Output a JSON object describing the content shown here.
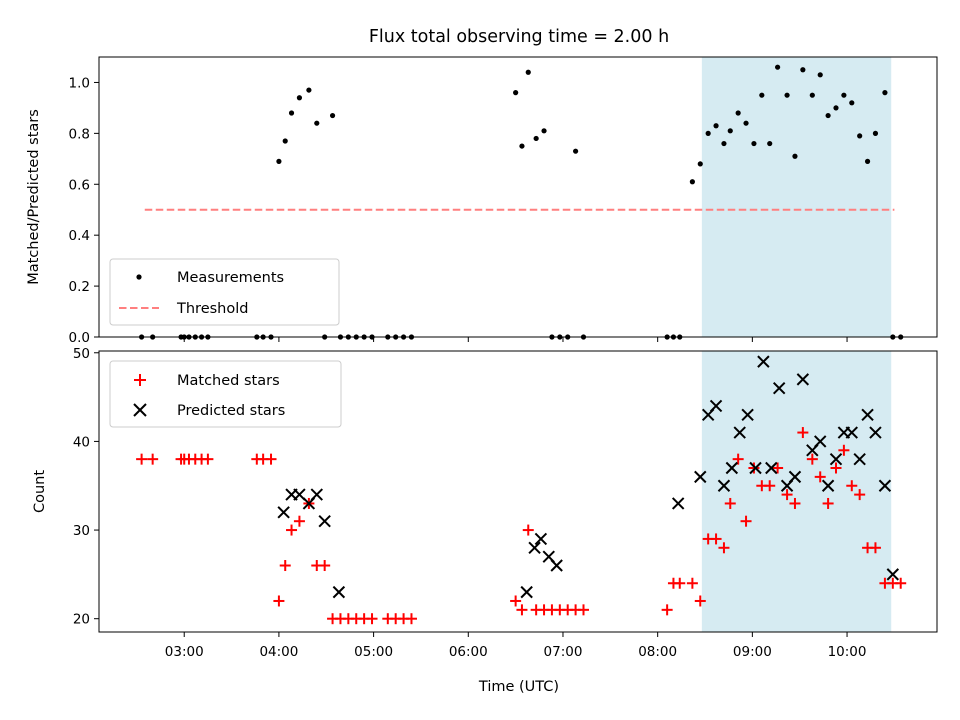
{
  "chart_data": [
    {
      "type": "scatter",
      "title": "Flux total observing time = 2.00 h",
      "xlabel": "",
      "ylabel": "Matched/Predicted stars",
      "ylim": [
        0,
        1.1
      ],
      "yticks": [
        0.0,
        0.2,
        0.4,
        0.6,
        0.8,
        1.0
      ],
      "ytick_labels": [
        "0.0",
        "0.2",
        "0.4",
        "0.6",
        "0.8",
        "1.0"
      ],
      "x_unit": "hours (UTC)",
      "xlim": [
        2.1,
        10.95
      ],
      "shaded_interval": {
        "start": "08:28",
        "end": "10:28",
        "color": "#add8e6"
      },
      "threshold": {
        "value": 0.5,
        "x_start": "02:35",
        "x_end": "10:30",
        "color": "#ff7f7f",
        "style": "dashed"
      },
      "legend": {
        "position": "lower-left",
        "entries": [
          "Measurements",
          "Threshold"
        ]
      },
      "series": [
        {
          "name": "Measurements",
          "color": "#000000",
          "x": [
            "02:33",
            "02:40",
            "02:58",
            "03:00",
            "03:03",
            "03:07",
            "03:11",
            "03:15",
            "03:46",
            "03:50",
            "03:55",
            "04:00",
            "04:04",
            "04:08",
            "04:13",
            "04:19",
            "04:24",
            "04:29",
            "04:34",
            "04:39",
            "04:44",
            "04:49",
            "04:54",
            "04:59",
            "05:09",
            "05:14",
            "05:19",
            "05:24",
            "06:30",
            "06:34",
            "06:38",
            "06:43",
            "06:48",
            "06:53",
            "06:58",
            "07:03",
            "07:08",
            "07:13",
            "08:06",
            "08:10",
            "08:14",
            "08:22",
            "08:27",
            "08:32",
            "08:37",
            "08:42",
            "08:46",
            "08:51",
            "08:56",
            "09:01",
            "09:06",
            "09:11",
            "09:16",
            "09:22",
            "09:27",
            "09:32",
            "09:38",
            "09:43",
            "09:48",
            "09:53",
            "09:58",
            "10:03",
            "10:08",
            "10:13",
            "10:18",
            "10:24",
            "10:29",
            "10:34"
          ],
          "y": [
            0,
            0,
            0,
            0,
            0,
            0,
            0,
            0,
            0,
            0,
            0,
            0.69,
            0.77,
            0.88,
            0.94,
            0.97,
            0.84,
            0,
            0.87,
            0,
            0,
            0,
            0,
            0,
            0,
            0,
            0,
            0,
            0.96,
            0.75,
            1.04,
            0.78,
            0.81,
            0,
            0,
            0,
            0.73,
            0,
            0,
            0,
            0,
            0.61,
            0.68,
            0.8,
            0.83,
            0.76,
            0.81,
            0.88,
            0.84,
            0.76,
            0.95,
            0.76,
            1.06,
            0.95,
            0.71,
            1.05,
            0.95,
            1.03,
            0.87,
            0.9,
            0.95,
            0.92,
            0.79,
            0.69,
            0.8,
            0.96,
            0,
            0
          ]
        }
      ]
    },
    {
      "type": "scatter",
      "title": "",
      "xlabel": "Time (UTC)",
      "ylabel": "Count",
      "ylim": [
        18.5,
        50.2
      ],
      "yticks": [
        20,
        30,
        40,
        50
      ],
      "ytick_labels": [
        "20",
        "30",
        "40",
        "50"
      ],
      "x_unit": "hours (UTC)",
      "xlim": [
        2.1,
        10.95
      ],
      "xticks": [
        3,
        4,
        5,
        6,
        7,
        8,
        9,
        10
      ],
      "xtick_labels": [
        "03:00",
        "04:00",
        "05:00",
        "06:00",
        "07:00",
        "08:00",
        "09:00",
        "10:00"
      ],
      "shaded_interval": {
        "start": "08:28",
        "end": "10:28",
        "color": "#add8e6"
      },
      "legend": {
        "position": "upper-left",
        "entries": [
          "Matched stars",
          "Predicted stars"
        ]
      },
      "series": [
        {
          "name": "Matched stars",
          "marker": "plus",
          "color": "#ff0000",
          "x": [
            "02:33",
            "02:40",
            "02:58",
            "03:00",
            "03:03",
            "03:07",
            "03:11",
            "03:15",
            "03:46",
            "03:50",
            "03:55",
            "04:00",
            "04:04",
            "04:08",
            "04:13",
            "04:19",
            "04:24",
            "04:29",
            "04:34",
            "04:39",
            "04:44",
            "04:49",
            "04:54",
            "04:59",
            "05:09",
            "05:14",
            "05:19",
            "05:24",
            "06:30",
            "06:34",
            "06:38",
            "06:43",
            "06:48",
            "06:53",
            "06:58",
            "07:03",
            "07:08",
            "07:13",
            "08:06",
            "08:10",
            "08:14",
            "08:22",
            "08:27",
            "08:32",
            "08:37",
            "08:42",
            "08:46",
            "08:51",
            "08:56",
            "09:01",
            "09:06",
            "09:11",
            "09:16",
            "09:22",
            "09:27",
            "09:32",
            "09:38",
            "09:43",
            "09:48",
            "09:53",
            "09:58",
            "10:03",
            "10:08",
            "10:13",
            "10:18",
            "10:24",
            "10:29",
            "10:34"
          ],
          "y": [
            38,
            38,
            38,
            38,
            38,
            38,
            38,
            38,
            38,
            38,
            38,
            22,
            26,
            30,
            31,
            33,
            26,
            26,
            20,
            20,
            20,
            20,
            20,
            20,
            20,
            20,
            20,
            20,
            22,
            21,
            30,
            21,
            21,
            21,
            21,
            21,
            21,
            21,
            21,
            24,
            24,
            24,
            22,
            29,
            29,
            28,
            33,
            38,
            31,
            37,
            35,
            35,
            37,
            34,
            33,
            41,
            38,
            36,
            33,
            37,
            39,
            35,
            34,
            28,
            28,
            24,
            24,
            24
          ]
        },
        {
          "name": "Predicted stars",
          "marker": "x",
          "color": "#000000",
          "x": [
            "04:03",
            "04:08",
            "04:13",
            "04:19",
            "04:24",
            "04:29",
            "04:38",
            "06:37",
            "06:42",
            "06:46",
            "06:51",
            "06:56",
            "08:13",
            "08:27",
            "08:32",
            "08:37",
            "08:42",
            "08:47",
            "08:52",
            "08:57",
            "09:02",
            "09:07",
            "09:12",
            "09:17",
            "09:22",
            "09:27",
            "09:32",
            "09:38",
            "09:43",
            "09:48",
            "09:53",
            "09:58",
            "10:03",
            "10:08",
            "10:13",
            "10:18",
            "10:24",
            "10:29"
          ],
          "y": [
            32,
            34,
            34,
            33,
            34,
            31,
            23,
            23,
            28,
            29,
            27,
            26,
            33,
            36,
            43,
            44,
            35,
            37,
            41,
            43,
            37,
            49,
            37,
            46,
            35,
            36,
            47,
            39,
            40,
            35,
            38,
            41,
            41,
            38,
            43,
            41,
            35,
            25
          ]
        }
      ]
    }
  ]
}
